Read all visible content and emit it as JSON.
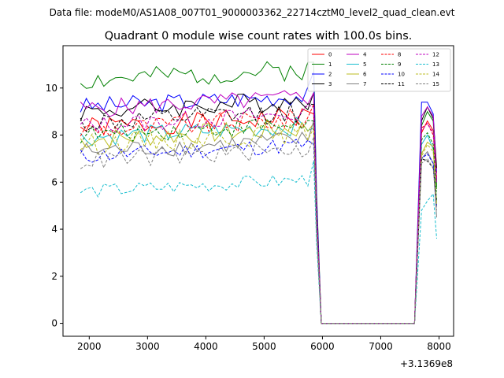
{
  "suptitle": "Data file: modeM0/AS1A08_007T01_9000003362_22714cztM0_level2_quad_clean.evt",
  "chart_data": {
    "type": "line",
    "title": "Quadrant 0 module wise count rates with 100.0s bins.",
    "xlabel": "",
    "ylabel": "",
    "x_offset_label": "+3.1369e8",
    "xlim": [
      1550,
      8250
    ],
    "ylim": [
      -0.55,
      11.8
    ],
    "xticks": [
      2000,
      3000,
      4000,
      5000,
      6000,
      7000,
      8000
    ],
    "xtick_labels": [
      "2000",
      "3000",
      "4000",
      "5000",
      "6000",
      "7000",
      "8000"
    ],
    "yticks": [
      0,
      2,
      4,
      6,
      8,
      10
    ],
    "ytick_labels": [
      "0",
      "2",
      "4",
      "6",
      "8",
      "10"
    ],
    "grid": false,
    "legend_position": "top-right",
    "legend_columns": 4,
    "gap": {
      "drop_x": 5950,
      "zero_start": 5980,
      "zero_end": 7580,
      "rise_x": 7680
    },
    "series": [
      {
        "name": "0",
        "color": "#ff0000",
        "dash": "solid",
        "base": 8.3,
        "amp": 0.45,
        "seed": 1,
        "pre_end": 8.9,
        "post": [
          8.1,
          8.6,
          8.2,
          6.0
        ]
      },
      {
        "name": "1",
        "color": "#008000",
        "dash": "solid",
        "base": 10.3,
        "amp": 0.45,
        "seed": 2,
        "pre_end": 11.1,
        "post": [
          8.4,
          9.0,
          8.6,
          5.8
        ]
      },
      {
        "name": "2",
        "color": "#0000ff",
        "dash": "solid",
        "base": 9.2,
        "amp": 0.4,
        "seed": 3,
        "pre_end": 10.7,
        "post": [
          9.4,
          9.4,
          8.9,
          6.4
        ]
      },
      {
        "name": "3",
        "color": "#000000",
        "dash": "solid",
        "base": 9.0,
        "amp": 0.45,
        "seed": 4,
        "pre_end": 9.8,
        "post": [
          8.6,
          9.2,
          8.7,
          6.6
        ]
      },
      {
        "name": "4",
        "color": "#bf00bf",
        "dash": "solid",
        "base": 9.1,
        "amp": 0.4,
        "seed": 5,
        "pre_end": 9.8,
        "post": [
          8.8,
          9.2,
          8.8,
          6.1
        ]
      },
      {
        "name": "5",
        "color": "#17becf",
        "dash": "solid",
        "base": 7.9,
        "amp": 0.4,
        "seed": 6,
        "pre_end": 8.3,
        "post": [
          7.6,
          8.0,
          7.4,
          5.2
        ]
      },
      {
        "name": "6",
        "color": "#bcbd22",
        "dash": "solid",
        "base": 7.8,
        "amp": 0.45,
        "seed": 7,
        "pre_end": 8.5,
        "post": [
          7.2,
          7.7,
          7.5,
          5.0
        ]
      },
      {
        "name": "7",
        "color": "#808080",
        "dash": "solid",
        "base": 7.3,
        "amp": 0.4,
        "seed": 8,
        "pre_end": 8.6,
        "post": [
          7.0,
          7.3,
          6.8,
          4.5
        ]
      },
      {
        "name": "8",
        "color": "#ff0000",
        "dash": "dashed",
        "base": 8.2,
        "amp": 0.45,
        "seed": 9,
        "pre_end": 9.3,
        "post": [
          8.3,
          8.5,
          8.0,
          6.2
        ]
      },
      {
        "name": "9",
        "color": "#008000",
        "dash": "dashed",
        "base": 8.0,
        "amp": 0.4,
        "seed": 10,
        "pre_end": 8.6,
        "post": [
          7.8,
          8.1,
          7.6,
          5.6
        ]
      },
      {
        "name": "10",
        "color": "#0000ff",
        "dash": "dashed",
        "base": 7.1,
        "amp": 0.35,
        "seed": 11,
        "pre_end": 7.6,
        "post": [
          7.0,
          7.2,
          6.8,
          4.9
        ]
      },
      {
        "name": "11",
        "color": "#000000",
        "dash": "dashed",
        "base": 8.5,
        "amp": 0.45,
        "seed": 12,
        "pre_end": 9.3,
        "post": [
          7.0,
          6.9,
          6.6,
          5.2
        ]
      },
      {
        "name": "12",
        "color": "#bf00bf",
        "dash": "dashed",
        "base": 8.4,
        "amp": 0.4,
        "seed": 13,
        "pre_end": 9.2,
        "post": [
          8.2,
          8.5,
          8.1,
          6.0
        ]
      },
      {
        "name": "13",
        "color": "#17becf",
        "dash": "dashed",
        "base": 5.6,
        "amp": 0.3,
        "seed": 14,
        "pre_end": 6.9,
        "post": [
          4.8,
          5.2,
          5.5,
          3.6
        ]
      },
      {
        "name": "14",
        "color": "#bcbd22",
        "dash": "dashed",
        "base": 7.6,
        "amp": 0.45,
        "seed": 15,
        "pre_end": 8.3,
        "post": [
          7.1,
          7.6,
          7.3,
          5.1
        ]
      },
      {
        "name": "15",
        "color": "#808080",
        "dash": "dashed",
        "base": 6.9,
        "amp": 0.4,
        "seed": 16,
        "pre_end": 7.9,
        "post": [
          6.8,
          7.0,
          6.6,
          4.8
        ]
      }
    ]
  }
}
